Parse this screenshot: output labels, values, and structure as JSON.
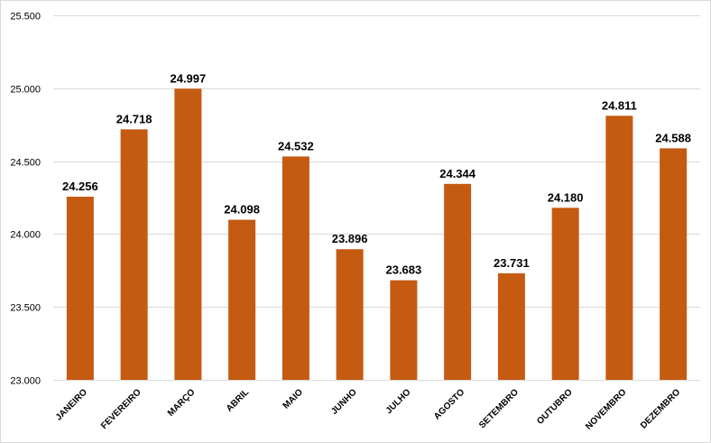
{
  "chart_data": {
    "type": "bar",
    "title": "",
    "xlabel": "",
    "ylabel": "",
    "categories": [
      "JANEIRO",
      "FEVEREIRO",
      "MARÇO",
      "ABRIL",
      "MAIO",
      "JUNHO",
      "JULHO",
      "AGOSTO",
      "SETEMBRO",
      "OUTUBRO",
      "NOVEMBRO",
      "DEZEMBRO"
    ],
    "values": [
      24256,
      24718,
      24997,
      24098,
      24532,
      23896,
      23683,
      24344,
      23731,
      24180,
      24811,
      24588
    ],
    "data_labels": [
      "24.256",
      "24.718",
      "24.997",
      "24.098",
      "24.532",
      "23.896",
      "23.683",
      "24.344",
      "23.731",
      "24.180",
      "24.811",
      "24.588"
    ],
    "ylim": [
      23000,
      25500
    ],
    "yticks": [
      23000,
      23500,
      24000,
      24500,
      25000,
      25500
    ],
    "ytick_labels": [
      "23.000",
      "23.500",
      "24.000",
      "24.500",
      "25.000",
      "25.500"
    ],
    "grid": true,
    "legend": "none",
    "bar_color": "#C55A11"
  }
}
